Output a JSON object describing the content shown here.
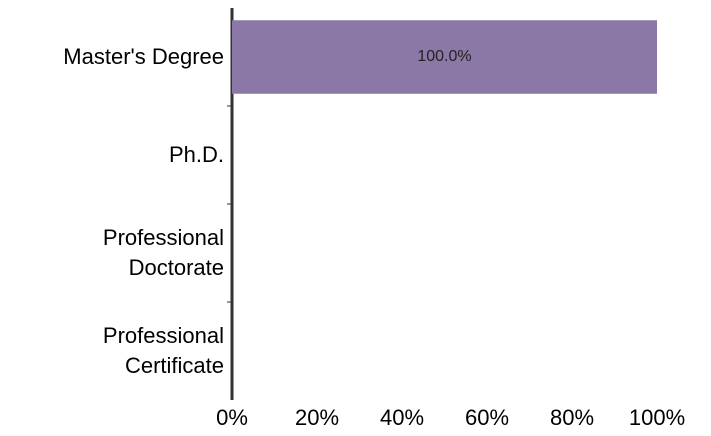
{
  "chart_data": {
    "type": "barh",
    "categories": [
      "Master's Degree",
      "Ph.D.",
      "Professional\nDoctorate",
      "Professional\nCertificate"
    ],
    "values": [
      100,
      0,
      0,
      0
    ],
    "value_labels": [
      "100.0%",
      null,
      null,
      null
    ],
    "color": "#8b78a6",
    "xlim": [
      0,
      100
    ],
    "xticks": [
      {
        "value": 0,
        "label": "0%"
      },
      {
        "value": 20,
        "label": "20%"
      },
      {
        "value": 40,
        "label": "40%"
      },
      {
        "value": 60,
        "label": "60%"
      },
      {
        "value": 80,
        "label": "80%"
      },
      {
        "value": 100,
        "label": "100%"
      }
    ]
  }
}
